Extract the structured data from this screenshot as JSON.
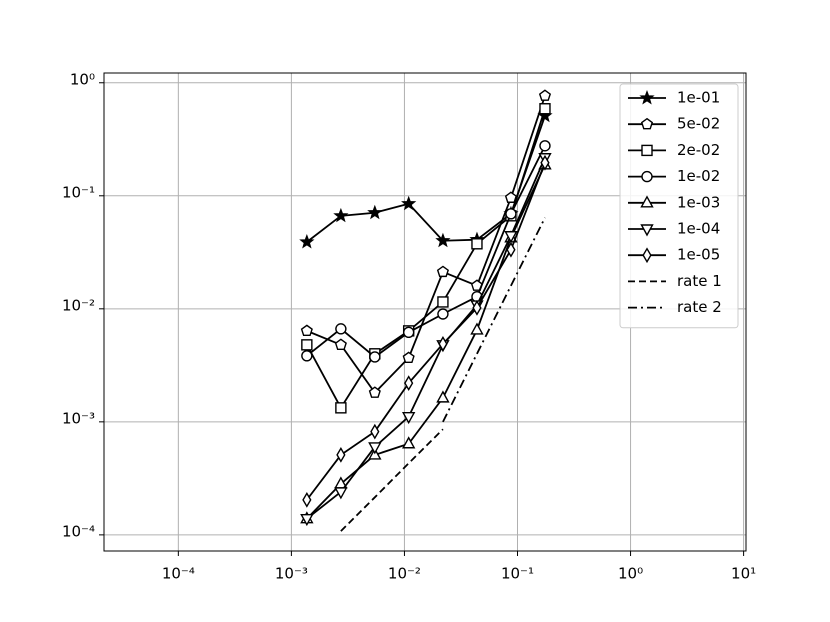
{
  "chart_data": {
    "type": "line",
    "x": [
      0.00137,
      0.00274,
      0.00547,
      0.0109,
      0.0219,
      0.0438,
      0.0875,
      0.175
    ],
    "xlog": true,
    "ylog": true,
    "grid": true,
    "legend": "upper right",
    "xlim": [
      2.2e-05,
      10.5
    ],
    "xticks": [
      {
        "value": 0.0001,
        "label": "10⁻⁴"
      },
      {
        "value": 0.001,
        "label": "10⁻³"
      },
      {
        "value": 0.01,
        "label": "10⁻²"
      },
      {
        "value": 0.1,
        "label": "10⁻¹"
      },
      {
        "value": 1,
        "label": "10⁰"
      },
      {
        "value": 10,
        "label": "10¹"
      }
    ],
    "ylim": [
      7.2e-05,
      1.22
    ],
    "yticks": [
      {
        "value": 0.0001,
        "label": "10⁻⁴"
      },
      {
        "value": 0.001,
        "label": "10⁻³"
      },
      {
        "value": 0.01,
        "label": "10⁻²"
      },
      {
        "value": 0.1,
        "label": "10⁻¹"
      },
      {
        "value": 1,
        "label": "10⁰"
      }
    ],
    "series": [
      {
        "name": "1e-01",
        "color": "#000000",
        "marker": "star",
        "linestyle": "solid",
        "values": [
          0.039,
          0.0665,
          0.0708,
          0.085,
          0.04,
          0.0409,
          0.0693,
          0.51
        ]
      },
      {
        "name": "5e-02",
        "color": "#000000",
        "marker": "pentagon",
        "linestyle": "solid",
        "values": [
          0.00638,
          0.0048,
          0.00181,
          0.00368,
          0.0212,
          0.016,
          0.096,
          0.767
        ]
      },
      {
        "name": "2e-02",
        "color": "#000000",
        "marker": "square",
        "linestyle": "solid",
        "values": [
          0.0048,
          0.00133,
          0.004,
          0.00638,
          0.0115,
          0.0376,
          0.0665,
          0.589
        ]
      },
      {
        "name": "1e-02",
        "color": "#000000",
        "marker": "circle",
        "linestyle": "solid",
        "values": [
          0.00384,
          0.00665,
          0.00375,
          0.0062,
          0.009,
          0.0128,
          0.0693,
          0.277
        ]
      },
      {
        "name": "1e-03",
        "color": "#000000",
        "marker": "triangle-up",
        "linestyle": "solid",
        "values": [
          0.000139,
          0.000283,
          0.00051,
          0.00064,
          0.00163,
          0.0065,
          0.0425,
          0.188
        ]
      },
      {
        "name": "1e-04",
        "color": "#000000",
        "marker": "triangle-down",
        "linestyle": "solid",
        "values": [
          0.000139,
          0.00024,
          0.0006,
          0.00111,
          0.0048,
          0.0108,
          0.0443,
          0.217
        ]
      },
      {
        "name": "1e-05",
        "color": "#000000",
        "marker": "thin-diamond",
        "linestyle": "solid",
        "values": [
          0.000204,
          0.00051,
          0.00082,
          0.0022,
          0.0049,
          0.0102,
          0.0333,
          0.196
        ]
      },
      {
        "name": "rate 1",
        "color": "#000000",
        "marker": "none",
        "linestyle": "dashed",
        "values": [
          null,
          0.000108,
          0.000215,
          0.00043,
          0.00086,
          null,
          null,
          null
        ]
      },
      {
        "name": "rate 2",
        "color": "#000000",
        "marker": "none",
        "linestyle": "dashdot",
        "values": [
          null,
          null,
          null,
          null,
          0.001,
          0.004,
          0.016,
          0.064
        ]
      }
    ]
  }
}
